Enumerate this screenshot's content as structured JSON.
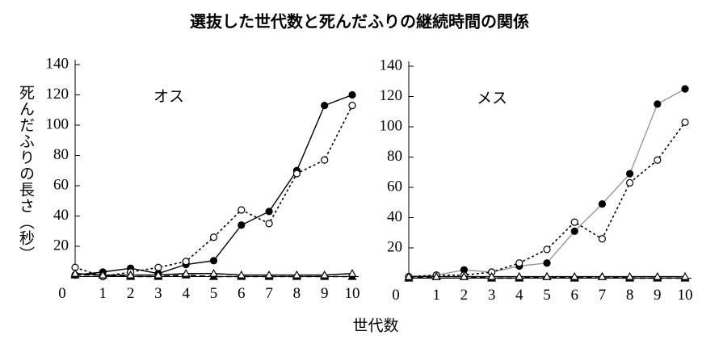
{
  "title": "選抜した世代数と死んだふりの継続時間の関係",
  "x_label": "世代数",
  "y_label": "死んだふりの長さ（秒）",
  "chart_data": [
    {
      "type": "line",
      "title": "オス",
      "x": [
        0,
        1,
        2,
        3,
        4,
        5,
        6,
        7,
        8,
        9,
        10
      ],
      "xlim": [
        0,
        10
      ],
      "xticks": [
        0,
        1,
        2,
        3,
        4,
        5,
        6,
        7,
        8,
        9,
        10
      ],
      "ylim": [
        0,
        140
      ],
      "yticks": [
        20,
        40,
        60,
        80,
        100,
        120,
        140
      ],
      "series": [
        {
          "color": "#000000",
          "line_style": "solid",
          "marker": "filled-circle",
          "values": [
            1,
            3,
            5.5,
            2,
            8,
            10.5,
            34,
            43,
            70,
            113,
            120
          ]
        },
        {
          "color": "#000000",
          "line_style": "dotted",
          "marker": "open-circle",
          "values": [
            6,
            0,
            3,
            6,
            10,
            26,
            44,
            35,
            68,
            77,
            113
          ]
        },
        {
          "color": "#000000",
          "line_style": "dashed",
          "marker": "filled-triangle",
          "values": [
            1,
            1,
            0,
            0,
            1,
            0,
            0,
            0,
            0,
            0,
            0
          ]
        },
        {
          "color": "#000000",
          "line_style": "solid",
          "marker": "open-triangle",
          "values": [
            2,
            1,
            1,
            1,
            2,
            2,
            1,
            1,
            1,
            1,
            2
          ]
        }
      ]
    },
    {
      "type": "line",
      "title": "メス",
      "x": [
        0,
        1,
        2,
        3,
        4,
        5,
        6,
        7,
        8,
        9,
        10
      ],
      "xlim": [
        0,
        10
      ],
      "xticks": [
        0,
        1,
        2,
        3,
        4,
        5,
        6,
        7,
        8,
        9,
        10
      ],
      "ylim": [
        0,
        140
      ],
      "yticks": [
        20,
        40,
        60,
        80,
        100,
        120,
        140
      ],
      "series": [
        {
          "color": "#999999",
          "line_style": "solid",
          "marker": "filled-circle",
          "values": [
            1,
            2,
            5.5,
            4,
            8,
            10,
            31,
            49,
            69,
            115,
            125
          ]
        },
        {
          "color": "#000000",
          "line_style": "dotted",
          "marker": "open-circle",
          "values": [
            1,
            2,
            2,
            4,
            10,
            19,
            37,
            26,
            63,
            78,
            103
          ]
        },
        {
          "color": "#000000",
          "line_style": "dashed",
          "marker": "filled-triangle",
          "values": [
            0,
            1,
            1,
            0,
            0,
            1,
            0,
            1,
            0,
            0,
            0
          ]
        },
        {
          "color": "#000000",
          "line_style": "solid",
          "marker": "open-triangle",
          "values": [
            1,
            1,
            1,
            1,
            1,
            1,
            1,
            1,
            1,
            1,
            1
          ]
        }
      ]
    }
  ]
}
